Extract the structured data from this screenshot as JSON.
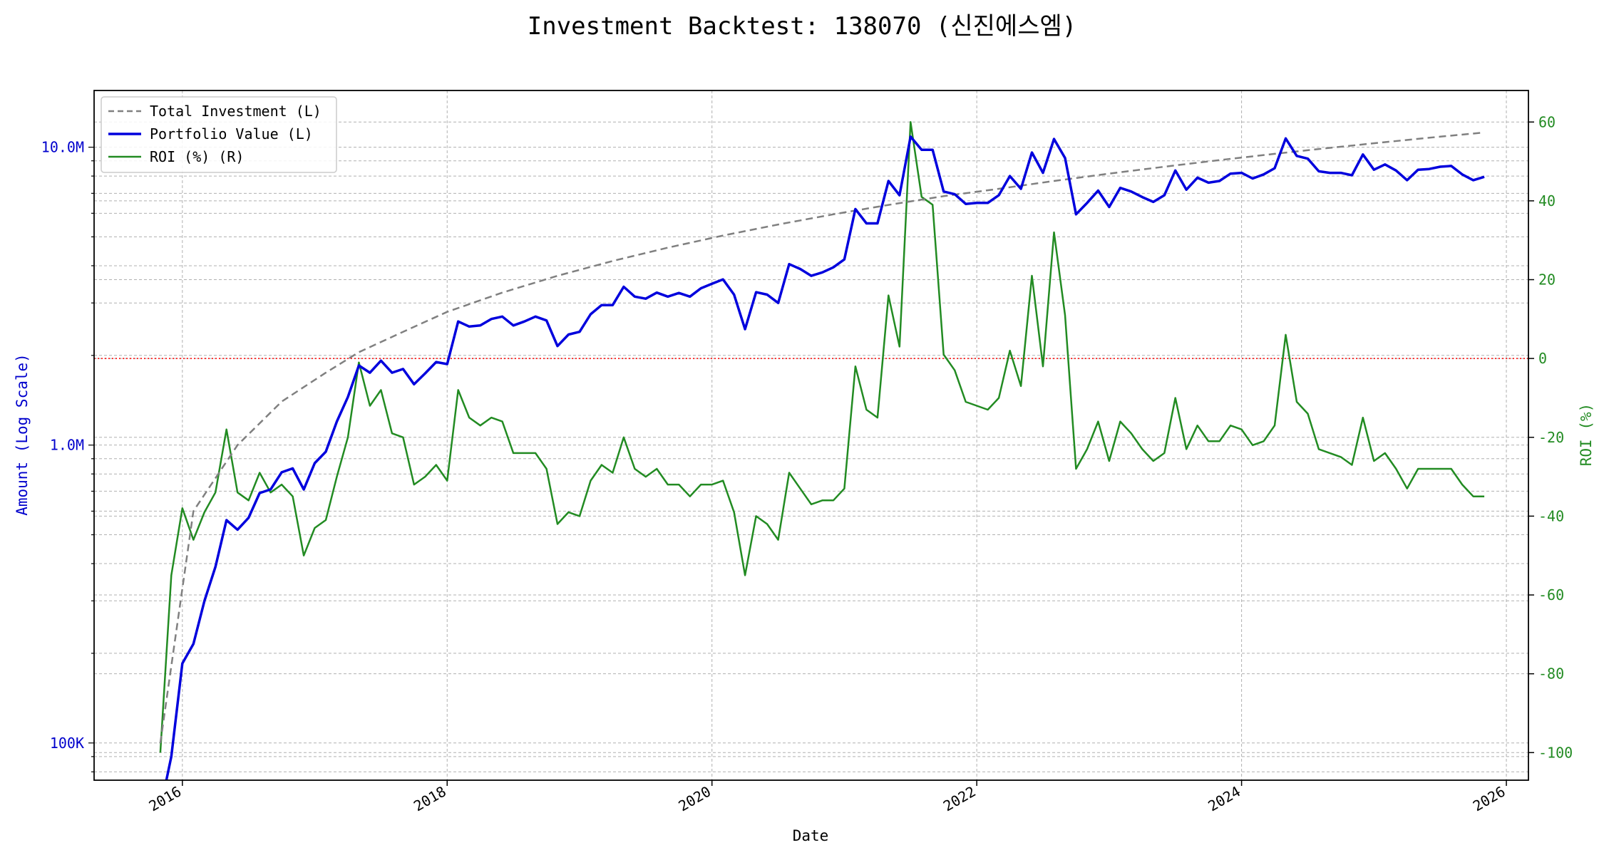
{
  "chart_data": {
    "type": "line",
    "title": "Investment Backtest: 138070 (신진에스엠)",
    "xlabel": "Date",
    "ylabel_left": "Amount (Log Scale)",
    "ylabel_right": "ROI (%)",
    "left_axis": {
      "scale": "log",
      "range": [
        75000,
        15500000
      ],
      "ticks": [
        {
          "value": 100000,
          "label": "100K"
        },
        {
          "value": 1000000,
          "label": "1.0M"
        },
        {
          "value": 10000000,
          "label": "10.0M"
        }
      ]
    },
    "right_axis": {
      "range": [
        -107,
        68
      ],
      "ticks": [
        -100,
        -80,
        -60,
        -40,
        -20,
        0,
        20,
        40,
        60
      ]
    },
    "x_axis": {
      "range": [
        "2015-05-01",
        "2026-03-01"
      ],
      "ticks": [
        "2016",
        "2018",
        "2020",
        "2022",
        "2024",
        "2026"
      ]
    },
    "grid": true,
    "legend_position": "top-left",
    "zero_line_color": "#ff0000",
    "colors": {
      "investment": "#808080",
      "portfolio": "#0000dd",
      "roi": "#228b22"
    },
    "series": [
      {
        "name": "Total Investment (L)",
        "axis": "left",
        "style": "dashed",
        "x": [
          "2015-11",
          "2016-02",
          "2016-06",
          "2016-10",
          "2017-02",
          "2017-05",
          "2017-09",
          "2018-01",
          "2018-06",
          "2018-11",
          "2019-04",
          "2019-09",
          "2020-02",
          "2020-07",
          "2020-12",
          "2021-05",
          "2021-10",
          "2022-03",
          "2022-08",
          "2023-01",
          "2023-06",
          "2023-11",
          "2024-04",
          "2024-09",
          "2025-02",
          "2025-07",
          "2025-11"
        ],
        "values": [
          100000,
          600000,
          1000000,
          1400000,
          1750000,
          2050000,
          2400000,
          2800000,
          3250000,
          3700000,
          4150000,
          4600000,
          5050000,
          5500000,
          5950000,
          6400000,
          6850000,
          7250000,
          7700000,
          8150000,
          8600000,
          9050000,
          9500000,
          9950000,
          10400000,
          10850000,
          11200000
        ]
      },
      {
        "name": "Portfolio Value (L)",
        "axis": "left",
        "style": "solid",
        "x": [
          "2015-11",
          "2015-12",
          "2016-01",
          "2016-02",
          "2016-03",
          "2016-04",
          "2016-05",
          "2016-06",
          "2016-07",
          "2016-08",
          "2016-09",
          "2016-10",
          "2016-11",
          "2016-12",
          "2017-01",
          "2017-02",
          "2017-03",
          "2017-04",
          "2017-05",
          "2017-06",
          "2017-07",
          "2017-08",
          "2017-09",
          "2017-10",
          "2017-11",
          "2017-12",
          "2018-01",
          "2018-02",
          "2018-03",
          "2018-04",
          "2018-05",
          "2018-06",
          "2018-07",
          "2018-08",
          "2018-09",
          "2018-10",
          "2018-11",
          "2018-12",
          "2019-01",
          "2019-02",
          "2019-03",
          "2019-04",
          "2019-05",
          "2019-06",
          "2019-07",
          "2019-08",
          "2019-09",
          "2019-10",
          "2019-11",
          "2019-12",
          "2020-01",
          "2020-02",
          "2020-03",
          "2020-04",
          "2020-05",
          "2020-06",
          "2020-07",
          "2020-08",
          "2020-09",
          "2020-10",
          "2020-11",
          "2020-12",
          "2021-01",
          "2021-02",
          "2021-03",
          "2021-04",
          "2021-05",
          "2021-06",
          "2021-07",
          "2021-08",
          "2021-09",
          "2021-10",
          "2021-11",
          "2021-12",
          "2022-01",
          "2022-02",
          "2022-03",
          "2022-04",
          "2022-05",
          "2022-06",
          "2022-07",
          "2022-08",
          "2022-09",
          "2022-10",
          "2022-11",
          "2022-12",
          "2023-01",
          "2023-02",
          "2023-03",
          "2023-04",
          "2023-05",
          "2023-06",
          "2023-07",
          "2023-08",
          "2023-09",
          "2023-10",
          "2023-11",
          "2023-12",
          "2024-01",
          "2024-02",
          "2024-03",
          "2024-04",
          "2024-05",
          "2024-06",
          "2024-07",
          "2024-08",
          "2024-09",
          "2024-10",
          "2024-11",
          "2024-12",
          "2025-01",
          "2025-02",
          "2025-03",
          "2025-04",
          "2025-05",
          "2025-06",
          "2025-07",
          "2025-08",
          "2025-09",
          "2025-10",
          "2025-11"
        ],
        "values": [
          60000,
          90000,
          185000,
          215000,
          300000,
          390000,
          560000,
          520000,
          570000,
          690000,
          710000,
          810000,
          835000,
          710000,
          870000,
          950000,
          1200000,
          1450000,
          1850000,
          1750000,
          1920000,
          1750000,
          1800000,
          1600000,
          1740000,
          1900000,
          1870000,
          2600000,
          2500000,
          2520000,
          2650000,
          2700000,
          2520000,
          2600000,
          2700000,
          2620000,
          2150000,
          2350000,
          2400000,
          2750000,
          2950000,
          2950000,
          3400000,
          3150000,
          3100000,
          3250000,
          3150000,
          3240000,
          3150000,
          3360000,
          3480000,
          3600000,
          3200000,
          2450000,
          3260000,
          3200000,
          3000000,
          4050000,
          3900000,
          3700000,
          3800000,
          3950000,
          4200000,
          6200000,
          5550000,
          5550000,
          7700000,
          6900000,
          10850000,
          9800000,
          9800000,
          7100000,
          6950000,
          6450000,
          6500000,
          6500000,
          6900000,
          8000000,
          7250000,
          9600000,
          8200000,
          10650000,
          9200000,
          5950000,
          6500000,
          7150000,
          6300000,
          7300000,
          7100000,
          6800000,
          6550000,
          6900000,
          8350000,
          7200000,
          7900000,
          7600000,
          7700000,
          8150000,
          8200000,
          7850000,
          8100000,
          8500000,
          10700000,
          9350000,
          9150000,
          8300000,
          8200000,
          8200000,
          8050000,
          9450000,
          8400000,
          8750000,
          8350000,
          7750000,
          8400000,
          8450000,
          8600000,
          8650000,
          8100000,
          7750000,
          7950000
        ]
      },
      {
        "name": "ROI (%) (R)",
        "axis": "right",
        "style": "solid",
        "x": [
          "2015-11",
          "2015-12",
          "2016-01",
          "2016-02",
          "2016-03",
          "2016-04",
          "2016-05",
          "2016-06",
          "2016-07",
          "2016-08",
          "2016-09",
          "2016-10",
          "2016-11",
          "2016-12",
          "2017-01",
          "2017-02",
          "2017-03",
          "2017-04",
          "2017-05",
          "2017-06",
          "2017-07",
          "2017-08",
          "2017-09",
          "2017-10",
          "2017-11",
          "2017-12",
          "2018-01",
          "2018-02",
          "2018-03",
          "2018-04",
          "2018-05",
          "2018-06",
          "2018-07",
          "2018-08",
          "2018-09",
          "2018-10",
          "2018-11",
          "2018-12",
          "2019-01",
          "2019-02",
          "2019-03",
          "2019-04",
          "2019-05",
          "2019-06",
          "2019-07",
          "2019-08",
          "2019-09",
          "2019-10",
          "2019-11",
          "2019-12",
          "2020-01",
          "2020-02",
          "2020-03",
          "2020-04",
          "2020-05",
          "2020-06",
          "2020-07",
          "2020-08",
          "2020-09",
          "2020-10",
          "2020-11",
          "2020-12",
          "2021-01",
          "2021-02",
          "2021-03",
          "2021-04",
          "2021-05",
          "2021-06",
          "2021-07",
          "2021-08",
          "2021-09",
          "2021-10",
          "2021-11",
          "2021-12",
          "2022-01",
          "2022-02",
          "2022-03",
          "2022-04",
          "2022-05",
          "2022-06",
          "2022-07",
          "2022-08",
          "2022-09",
          "2022-10",
          "2022-11",
          "2022-12",
          "2023-01",
          "2023-02",
          "2023-03",
          "2023-04",
          "2023-05",
          "2023-06",
          "2023-07",
          "2023-08",
          "2023-09",
          "2023-10",
          "2023-11",
          "2023-12",
          "2024-01",
          "2024-02",
          "2024-03",
          "2024-04",
          "2024-05",
          "2024-06",
          "2024-07",
          "2024-08",
          "2024-09",
          "2024-10",
          "2024-11",
          "2024-12",
          "2025-01",
          "2025-02",
          "2025-03",
          "2025-04",
          "2025-05",
          "2025-06",
          "2025-07",
          "2025-08",
          "2025-09",
          "2025-10",
          "2025-11"
        ],
        "values": [
          -100,
          -55,
          -38,
          -46,
          -39,
          -34,
          -18,
          -34,
          -36,
          -29,
          -34,
          -32,
          -35,
          -50,
          -43,
          -41,
          -30,
          -20,
          -1,
          -12,
          -8,
          -19,
          -20,
          -32,
          -30,
          -27,
          -31,
          -8,
          -15,
          -17,
          -15,
          -16,
          -24,
          -24,
          -24,
          -28,
          -42,
          -39,
          -40,
          -31,
          -27,
          -29,
          -20,
          -28,
          -30,
          -28,
          -32,
          -32,
          -35,
          -32,
          -32,
          -31,
          -39,
          -55,
          -40,
          -42,
          -46,
          -29,
          -33,
          -37,
          -36,
          -36,
          -33,
          -2,
          -13,
          -15,
          16,
          3,
          60,
          41,
          39,
          1,
          -3,
          -11,
          -12,
          -13,
          -10,
          2,
          -7,
          21,
          -2,
          32,
          11,
          -28,
          -23,
          -16,
          -26,
          -16,
          -19,
          -23,
          -26,
          -24,
          -10,
          -23,
          -17,
          -21,
          -21,
          -17,
          -18,
          -22,
          -21,
          -17,
          6,
          -11,
          -14,
          -23,
          -24,
          -25,
          -27,
          -15,
          -26,
          -24,
          -28,
          -33,
          -28,
          -28,
          -28,
          -28,
          -32,
          -35,
          -35
        ]
      }
    ]
  }
}
